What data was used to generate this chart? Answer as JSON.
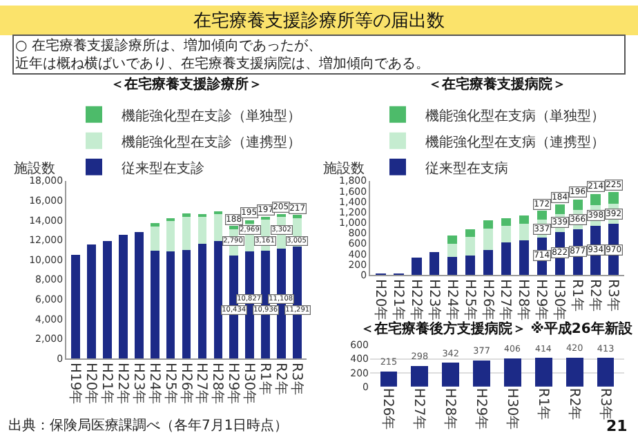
{
  "chart_data": [
    {
      "type": "bar",
      "title": "＜在宅療養支援診療所＞",
      "ylabel": "施設数",
      "stacked": true,
      "legend": "top left",
      "grid": false,
      "annotations": [
        "在宅療養支援診療所等の届出数",
        "○ 在宅療養支援診療所は、増加傾向であったが、近年は概ね横ばいであり、在宅療養支援病院は、増加傾向である。",
        "出典：保険局医療課調べ（各年7月1日時点）"
      ],
      "categories": [
        "H19年",
        "H20年",
        "H21年",
        "H22年",
        "H23年",
        "H24年",
        "H25年",
        "H26年",
        "H27年",
        "H28年",
        "H29年",
        "H30年",
        "R1年",
        "R2年",
        "R3年"
      ],
      "ylim": [
        0,
        18000
      ],
      "yticks": [
        0,
        {
          "value": 2000,
          "label": "2,000"
        },
        {
          "value": 4000,
          "label": "4,000"
        },
        {
          "value": 6000,
          "label": "6,000"
        },
        {
          "value": 8000,
          "label": "8,000"
        },
        {
          "value": 10000,
          "label": "10,000"
        },
        {
          "value": 12000,
          "label": "12,000"
        },
        {
          "value": 14000,
          "label": "14,000"
        },
        {
          "value": 16000,
          "label": "16,000"
        },
        {
          "value": 18000,
          "label": "18,000"
        }
      ],
      "series": [
        {
          "name": "従来型在支診",
          "color": "#1c2a87",
          "values": [
            10500,
            11500,
            11900,
            12500,
            12800,
            10900,
            10800,
            11000,
            11600,
            11900,
            10434,
            10827,
            10936,
            11108,
            11291
          ],
          "value_labels": [
            null,
            null,
            null,
            null,
            null,
            null,
            null,
            null,
            null,
            null,
            "10,434",
            "10,827",
            "10,936",
            "11,108",
            "11,291"
          ]
        },
        {
          "name": "機能強化型在支診（連携型）",
          "color": "#c5ecd0",
          "values": [
            null,
            null,
            null,
            null,
            null,
            2600,
            3200,
            3500,
            2800,
            2800,
            2790,
            2969,
            3161,
            3302,
            3005
          ],
          "value_labels": [
            null,
            null,
            null,
            null,
            null,
            null,
            null,
            null,
            null,
            null,
            "2,790",
            "2,969",
            "3,161",
            "3,302",
            "3,005"
          ]
        },
        {
          "name": "機能強化型在支診（単独型）",
          "color": "#4dbb6a",
          "values": [
            null,
            null,
            null,
            null,
            null,
            200,
            200,
            200,
            200,
            200,
            188,
            195,
            197,
            205,
            217
          ],
          "value_labels": [
            null,
            null,
            null,
            null,
            null,
            null,
            null,
            null,
            null,
            null,
            "188",
            "195",
            "197",
            "205",
            "217"
          ]
        }
      ]
    },
    {
      "type": "bar",
      "title": "＜在宅療養支援病院＞",
      "ylabel": "施設数",
      "stacked": true,
      "legend": "top left",
      "grid": false,
      "categories": [
        "H20年",
        "H21年",
        "H22年",
        "H23年",
        "H24年",
        "H25年",
        "H26年",
        "H27年",
        "H28年",
        "H29年",
        "H30年",
        "R1年",
        "R2年",
        "R3年"
      ],
      "ylim": [
        0,
        1800
      ],
      "yticks": [
        0,
        200,
        400,
        600,
        800,
        {
          "value": 1000,
          "label": "1,000"
        },
        {
          "value": 1200,
          "label": "1,200"
        },
        {
          "value": 1400,
          "label": "1,400"
        },
        {
          "value": 1600,
          "label": "1,600"
        },
        {
          "value": 1800,
          "label": "1,800"
        }
      ],
      "series": [
        {
          "name": "従来型在支病",
          "color": "#1c2a87",
          "values": [
            10,
            10,
            330,
            440,
            340,
            370,
            470,
            620,
            660,
            714,
            822,
            877,
            934,
            970
          ],
          "value_labels": [
            null,
            null,
            null,
            null,
            null,
            null,
            null,
            null,
            null,
            "714",
            "822",
            "877",
            "934",
            "970"
          ]
        },
        {
          "name": "機能強化型在支病（連携型）",
          "color": "#c5ecd0",
          "values": [
            null,
            null,
            null,
            null,
            260,
            350,
            410,
            310,
            320,
            337,
            339,
            366,
            398,
            392
          ],
          "value_labels": [
            null,
            null,
            null,
            null,
            null,
            null,
            null,
            null,
            null,
            "337",
            "339",
            "366",
            "398",
            "392"
          ]
        },
        {
          "name": "機能強化型在支病（単独型）",
          "color": "#4dbb6a",
          "values": [
            null,
            null,
            null,
            null,
            150,
            150,
            160,
            150,
            160,
            172,
            184,
            196,
            214,
            225
          ],
          "value_labels": [
            null,
            null,
            null,
            null,
            null,
            null,
            null,
            null,
            null,
            "172",
            "184",
            "196",
            "214",
            "225"
          ]
        }
      ]
    },
    {
      "type": "bar",
      "title": "＜在宅療養後方支援病院＞",
      "subtitle": "※平成26年新設",
      "legend": false,
      "grid": "y",
      "data_labels": true,
      "annotations": [
        "21"
      ],
      "categories": [
        "H26年",
        "H27年",
        "H28年",
        "H29年",
        "H30年",
        "R1年",
        "R2年",
        "R3年"
      ],
      "ylim": [
        0,
        600
      ],
      "yticks": [
        0,
        200,
        400,
        600
      ],
      "series": [
        {
          "color": "#1c2a87",
          "values": [
            215,
            298,
            342,
            377,
            406,
            414,
            420,
            413
          ]
        }
      ]
    }
  ]
}
